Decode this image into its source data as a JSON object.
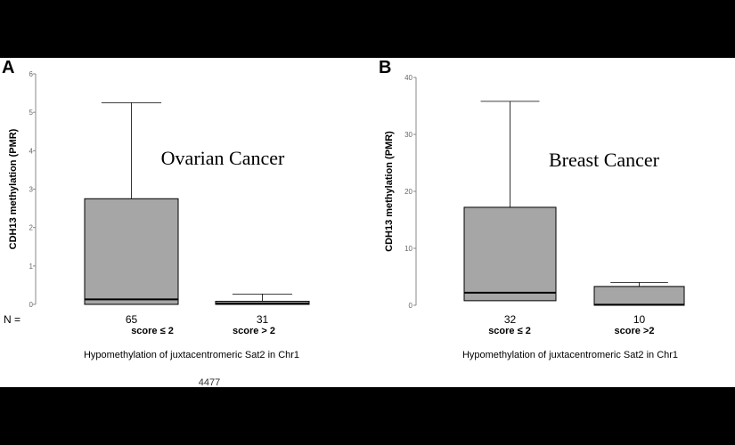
{
  "footnote": "4477",
  "n_label": "N =",
  "colors": {
    "box_fill": "#a6a6a6",
    "line": "#000000",
    "axis": "#888888"
  },
  "chart_data": [
    {
      "type": "box",
      "panel": "A",
      "title": "Ovarian Cancer",
      "ylabel": "CDH13 methylation (PMR)",
      "xlabel": "Hypomethylation of juxtacentromeric Sat2 in Chr1",
      "ylim": [
        0,
        6
      ],
      "yticks": [
        0,
        1,
        2,
        3,
        4,
        5,
        6
      ],
      "groups": [
        {
          "n": "65",
          "label": "score ≤ 2",
          "whisker_low": 0,
          "q1": 0,
          "median": 0.13,
          "q3": 2.75,
          "whisker_high": 5.25
        },
        {
          "n": "31",
          "label": "score > 2",
          "whisker_low": 0,
          "q1": 0,
          "median": 0.02,
          "q3": 0.08,
          "whisker_high": 0.27
        }
      ]
    },
    {
      "type": "box",
      "panel": "B",
      "title": "Breast Cancer",
      "ylabel": "CDH13 methylation (PMR)",
      "xlabel": "Hypomethylation of juxtacentromeric Sat2 in Chr1",
      "ylim": [
        0,
        40
      ],
      "yticks": [
        0,
        10,
        20,
        30,
        40
      ],
      "groups": [
        {
          "n": "32",
          "label": "score ≤ 2",
          "whisker_low": 0,
          "q1": 0.8,
          "median": 2.2,
          "q3": 17.2,
          "whisker_high": 35.8
        },
        {
          "n": "10",
          "label": "score >2",
          "whisker_low": 0,
          "q1": 0,
          "median": 0.1,
          "q3": 3.3,
          "whisker_high": 4.0
        }
      ]
    }
  ]
}
